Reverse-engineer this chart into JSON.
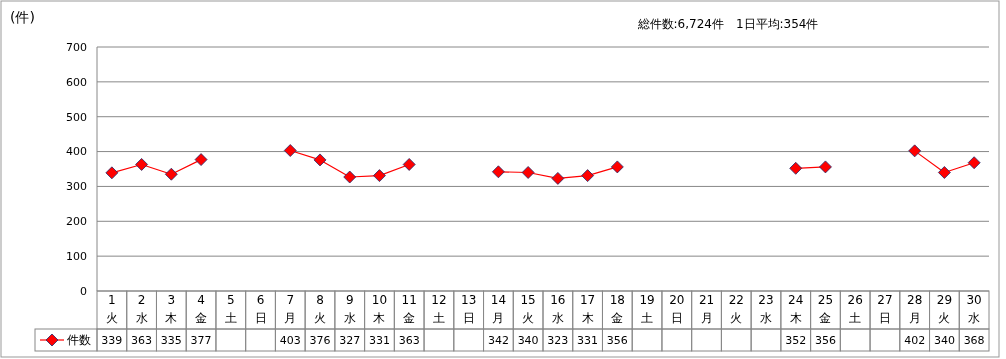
{
  "chart_data": {
    "type": "line",
    "ylabel": "(件)",
    "annotations": [
      "総件数:6,724件　1日平均:354件"
    ],
    "categories": [
      "1\n火",
      "2\n水",
      "3\n木",
      "4\n金",
      "5\n土",
      "6\n日",
      "7\n月",
      "8\n火",
      "9\n水",
      "10\n木",
      "11\n金",
      "12\n土",
      "13\n日",
      "14\n月",
      "15\n火",
      "16\n水",
      "17\n木",
      "18\n金",
      "19\n土",
      "20\n日",
      "21\n月",
      "22\n火",
      "23\n水",
      "24\n木",
      "25\n金",
      "26\n土",
      "27\n日",
      "28\n月",
      "29\n火",
      "30\n水"
    ],
    "series": [
      {
        "name": "件数",
        "color": "#ff0000",
        "values": [
          339,
          363,
          335,
          377,
          null,
          null,
          403,
          376,
          327,
          331,
          363,
          null,
          null,
          342,
          340,
          323,
          331,
          356,
          null,
          null,
          null,
          null,
          null,
          352,
          356,
          null,
          null,
          402,
          340,
          368
        ]
      }
    ],
    "ylim": [
      0,
      700
    ],
    "yticks": [
      0,
      100,
      200,
      300,
      400,
      500,
      600,
      700
    ],
    "grid": "y",
    "marker": "diamond",
    "line_style": "solid",
    "legend": "bottom",
    "data_labels": true
  }
}
